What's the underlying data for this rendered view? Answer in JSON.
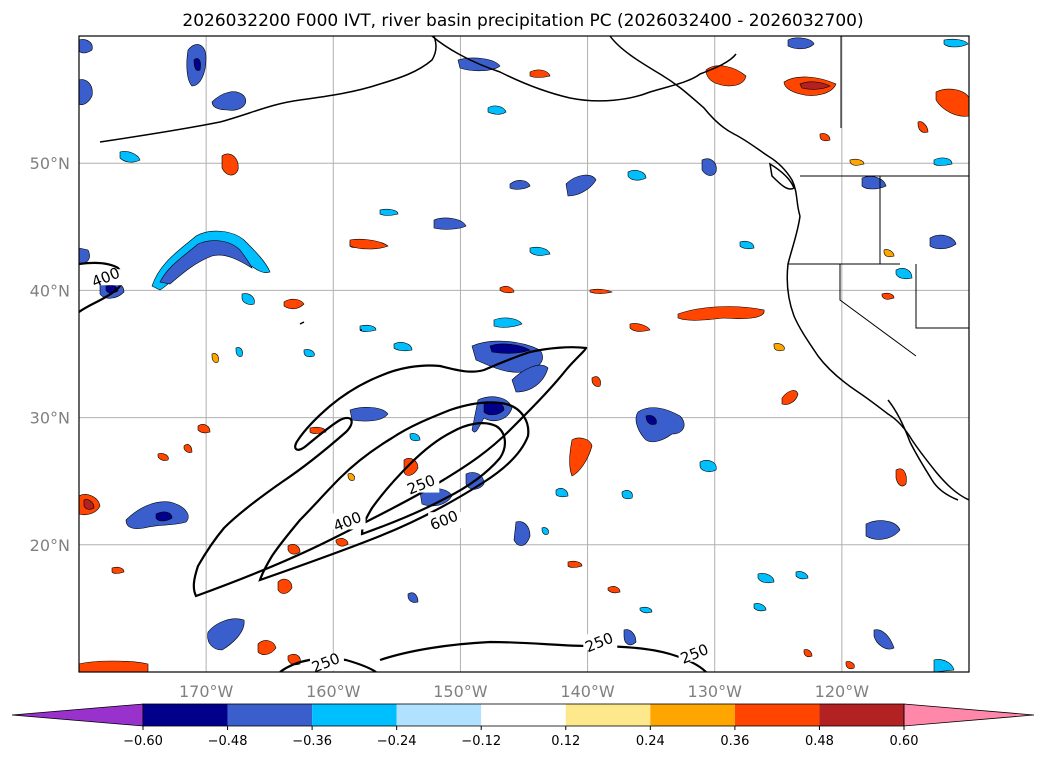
{
  "title": "2026032200 F000 IVT, river basin precipitation PC (2026032400 - 2026032700)",
  "map": {
    "lon_range": [
      -180,
      -110
    ],
    "lat_range": [
      10,
      60
    ],
    "xticks": [
      {
        "lon": -170,
        "label": "170°W"
      },
      {
        "lon": -160,
        "label": "160°W"
      },
      {
        "lon": -150,
        "label": "150°W"
      },
      {
        "lon": -140,
        "label": "140°W"
      },
      {
        "lon": -130,
        "label": "130°W"
      },
      {
        "lon": -120,
        "label": "120°W"
      }
    ],
    "yticks": [
      {
        "lat": 20,
        "label": "20°N"
      },
      {
        "lat": 30,
        "label": "30°N"
      },
      {
        "lat": 40,
        "label": "40°N"
      },
      {
        "lat": 50,
        "label": "50°N"
      }
    ],
    "grid": true,
    "ivt_contour_labels": [
      {
        "text": "250",
        "lon": -153,
        "lat": 24.5
      },
      {
        "text": "400",
        "lon": -158.8,
        "lat": 21.6
      },
      {
        "text": "600",
        "lon": -151.2,
        "lat": 21.7
      },
      {
        "text": "250",
        "lon": -139,
        "lat": 12.1
      },
      {
        "text": "250",
        "lon": -131.5,
        "lat": 11.2
      },
      {
        "text": "250",
        "lon": -160.5,
        "lat": 10.5
      },
      {
        "text": "400",
        "lon": -177.8,
        "lat": 40.8
      }
    ]
  },
  "colorbar": {
    "ticks": [
      "−0.60",
      "−0.48",
      "−0.36",
      "−0.24",
      "−0.12",
      "0.12",
      "0.24",
      "0.36",
      "0.48",
      "0.60"
    ],
    "under_color": "#9932cc",
    "over_color": "#ff88aa",
    "colors": [
      "#00008b",
      "#3a5fcd",
      "#00bfff",
      "#b0e2ff",
      "#ffffff",
      "#fde98c",
      "#ffa500",
      "#ff4500",
      "#b22222"
    ]
  }
}
